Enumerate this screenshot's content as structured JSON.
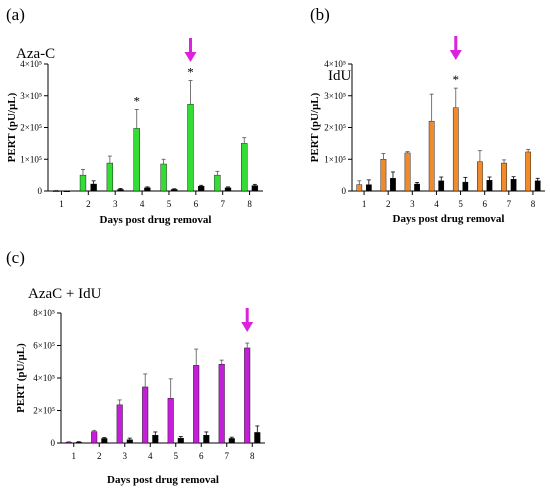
{
  "colors": {
    "aza_c": "#33dd33",
    "idu": "#f08a2a",
    "combo": "#c31fd6",
    "control": "#000000",
    "arrow": "#dd22dd"
  },
  "chart_data": [
    {
      "type": "bar",
      "panel_label": "(a)",
      "title": "Aza-C",
      "xlabel": "Days post drug removal",
      "ylabel": "PERT (pU/µL)",
      "categories": [
        "1",
        "2",
        "3",
        "4",
        "5",
        "6",
        "7",
        "8"
      ],
      "ylim": [
        0,
        400000
      ],
      "yticks": [
        "0",
        "1×10⁵",
        "2×10⁵",
        "3×10⁵",
        "4×10⁵"
      ],
      "series": [
        {
          "color_key": "aza_c",
          "values": [
            0,
            50000,
            88000,
            197000,
            85000,
            273000,
            50000,
            150000
          ],
          "errors": [
            2000,
            18000,
            22000,
            60000,
            15000,
            75000,
            12000,
            18000
          ]
        },
        {
          "color_key": "control",
          "values": [
            0,
            22000,
            5000,
            10000,
            5000,
            15000,
            10000,
            17000
          ],
          "errors": [
            0,
            10000,
            3000,
            3000,
            2000,
            3000,
            3000,
            4000
          ]
        }
      ],
      "significance": [
        "",
        "",
        "",
        "*",
        "",
        "*",
        "",
        ""
      ],
      "arrow_category": "6"
    },
    {
      "type": "bar",
      "panel_label": "(b)",
      "title": "IdU",
      "xlabel": "Days post drug removal",
      "ylabel": "PERT (pU/µL)",
      "categories": [
        "1",
        "2",
        "3",
        "4",
        "5",
        "6",
        "7",
        "8"
      ],
      "ylim": [
        0,
        400000
      ],
      "yticks": [
        "0",
        "1×10⁵",
        "2×10⁵",
        "3×10⁵",
        "4×10⁵"
      ],
      "series": [
        {
          "color_key": "idu",
          "values": [
            20000,
            100000,
            120000,
            220000,
            262000,
            92000,
            88000,
            123000
          ],
          "errors": [
            12000,
            18000,
            4000,
            85000,
            62000,
            35000,
            10000,
            8000
          ]
        },
        {
          "color_key": "control",
          "values": [
            20000,
            40000,
            22000,
            32000,
            28000,
            34000,
            37000,
            32000
          ],
          "errors": [
            15000,
            20000,
            5000,
            12000,
            15000,
            10000,
            8000,
            8000
          ]
        }
      ],
      "significance": [
        "",
        "",
        "",
        "",
        "*",
        "",
        "",
        ""
      ],
      "arrow_category": "5"
    },
    {
      "type": "bar",
      "panel_label": "(c)",
      "title": "AzaC + IdU",
      "xlabel": "Days post drug removal",
      "ylabel": "PERT (pU/µL)",
      "categories": [
        "1",
        "2",
        "3",
        "4",
        "5",
        "6",
        "7",
        "8"
      ],
      "ylim": [
        0,
        800000
      ],
      "yticks": [
        "0",
        "2×10⁵",
        "4×10⁵",
        "6×10⁵",
        "8×10⁵"
      ],
      "series": [
        {
          "color_key": "combo",
          "values": [
            5000,
            70000,
            235000,
            345000,
            275000,
            478000,
            485000,
            585000
          ],
          "errors": [
            3000,
            8000,
            30000,
            80000,
            120000,
            100000,
            25000,
            30000
          ]
        },
        {
          "color_key": "control",
          "values": [
            5000,
            28000,
            20000,
            48000,
            30000,
            48000,
            28000,
            65000
          ],
          "errors": [
            3000,
            5000,
            10000,
            20000,
            10000,
            20000,
            8000,
            40000
          ]
        }
      ],
      "significance": [
        "",
        "",
        "",
        "",
        "",
        "",
        "",
        ""
      ],
      "arrow_category": "8"
    }
  ]
}
